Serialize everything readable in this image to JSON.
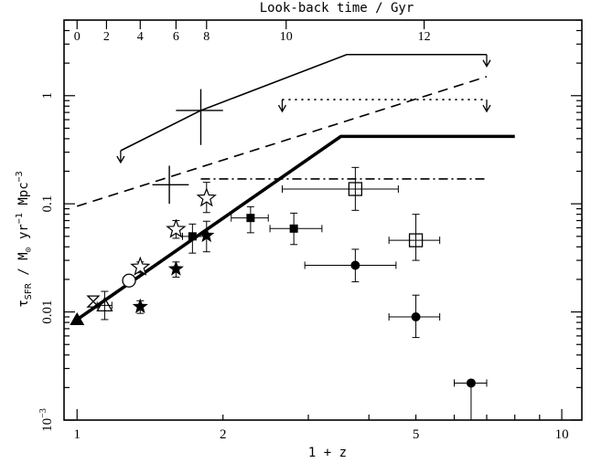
{
  "chart_data": {
    "type": "scatter",
    "title": "",
    "xlabel": "1 + z",
    "top_axis_label": "Look-back time / Gyr",
    "ylabel_text": {
      "tau": "τ",
      "sfr": "SFR",
      "units": " / M",
      "sun": "⊙",
      "yr": " yr",
      "yr_exp": "−1",
      "mpc": " Mpc",
      "mpc_exp": "−3"
    },
    "x_scale": "log",
    "y_scale": "log",
    "xlim": [
      0.94,
      11.0
    ],
    "ylim": [
      0.001,
      5.0
    ],
    "x_ticks": [
      {
        "value": 1,
        "label": "1"
      },
      {
        "value": 2,
        "label": "2"
      },
      {
        "value": 5,
        "label": "5"
      },
      {
        "value": 10,
        "label": "10"
      }
    ],
    "y_ticks": [
      {
        "value": 0.001,
        "label": "10",
        "exp": "−3"
      },
      {
        "value": 0.01,
        "label": "0.01",
        "exp": ""
      },
      {
        "value": 0.1,
        "label": "0.1",
        "exp": ""
      },
      {
        "value": 1,
        "label": "1",
        "exp": ""
      }
    ],
    "top_ticks": [
      {
        "x": 1.0,
        "label": "0"
      },
      {
        "x": 1.15,
        "label": "2"
      },
      {
        "x": 1.35,
        "label": "4"
      },
      {
        "x": 1.6,
        "label": "6"
      },
      {
        "x": 1.85,
        "label": "8"
      },
      {
        "x": 2.7,
        "label": "10"
      },
      {
        "x": 5.2,
        "label": "12"
      }
    ],
    "lines": [
      {
        "name": "upper-limit-solid",
        "style": "thin-solid",
        "points": [
          [
            1.23,
            0.31
          ],
          [
            1.8,
            0.73
          ],
          [
            3.6,
            2.4
          ],
          [
            7.0,
            2.4
          ]
        ],
        "down_arrows_x": [
          1.23,
          7.0
        ]
      },
      {
        "name": "dashed",
        "style": "dashed",
        "points": [
          [
            1.0,
            0.095
          ],
          [
            7.0,
            1.5
          ]
        ]
      },
      {
        "name": "dotted",
        "style": "dotted",
        "points": [
          [
            2.65,
            0.92
          ],
          [
            7.0,
            0.92
          ]
        ],
        "down_arrows_x": [
          2.65,
          7.0
        ]
      },
      {
        "name": "thick-solid",
        "style": "thick-solid",
        "points": [
          [
            1.0,
            0.0085
          ],
          [
            3.5,
            0.42
          ],
          [
            8.0,
            0.42
          ]
        ]
      },
      {
        "name": "dash-dot",
        "style": "dash-dot",
        "points": [
          [
            1.8,
            0.17
          ],
          [
            7.0,
            0.17
          ]
        ]
      }
    ],
    "points": [
      {
        "marker": "filled-triangle",
        "x": 1.0,
        "y": 0.0085,
        "xerr": [
          0,
          0
        ],
        "yerr": [
          0,
          0
        ]
      },
      {
        "marker": "bowtie",
        "x": 1.08,
        "y": 0.0125,
        "xerr": [
          0,
          0
        ],
        "yerr": [
          0,
          0
        ]
      },
      {
        "marker": "open-triangle",
        "x": 1.14,
        "y": 0.0115,
        "xerr": [
          0.04,
          0.04
        ],
        "yerr": [
          0.003,
          0.004
        ]
      },
      {
        "marker": "open-circle",
        "x": 1.28,
        "y": 0.0195,
        "xerr": [
          0,
          0
        ],
        "yerr": [
          0.002,
          0.002
        ]
      },
      {
        "marker": "filled-star",
        "x": 1.35,
        "y": 0.0112,
        "xerr": [
          0,
          0
        ],
        "yerr": [
          0.0015,
          0.0015
        ]
      },
      {
        "marker": "open-star",
        "x": 1.35,
        "y": 0.026,
        "xerr": [
          0,
          0
        ],
        "yerr": [
          0.003,
          0.003
        ]
      },
      {
        "marker": "filled-star",
        "x": 1.6,
        "y": 0.025,
        "xerr": [
          0,
          0
        ],
        "yerr": [
          0.004,
          0.004
        ]
      },
      {
        "marker": "open-star",
        "x": 1.6,
        "y": 0.058,
        "xerr": [
          0,
          0
        ],
        "yerr": [
          0.01,
          0.012
        ]
      },
      {
        "marker": "filled-square",
        "x": 1.73,
        "y": 0.05,
        "xerr": [
          0.08,
          0.1
        ],
        "yerr": [
          0.015,
          0.015
        ]
      },
      {
        "marker": "filled-star",
        "x": 1.85,
        "y": 0.051,
        "xerr": [
          0,
          0
        ],
        "yerr": [
          0.015,
          0.018
        ]
      },
      {
        "marker": "open-star",
        "x": 1.85,
        "y": 0.113,
        "xerr": [
          0,
          0
        ],
        "yerr": [
          0.03,
          0.045
        ]
      },
      {
        "marker": "filled-square",
        "x": 2.28,
        "y": 0.074,
        "xerr": [
          0.2,
          0.2
        ],
        "yerr": [
          0.02,
          0.02
        ]
      },
      {
        "marker": "filled-square",
        "x": 2.8,
        "y": 0.059,
        "xerr": [
          0.3,
          0.4
        ],
        "yerr": [
          0.017,
          0.023
        ]
      },
      {
        "marker": "open-square",
        "x": 3.75,
        "y": 0.137,
        "xerr": [
          1.1,
          0.85
        ],
        "yerr": [
          0.05,
          0.08
        ]
      },
      {
        "marker": "filled-circle",
        "x": 3.75,
        "y": 0.027,
        "xerr": [
          0.8,
          0.8
        ],
        "yerr": [
          0.008,
          0.011
        ]
      },
      {
        "marker": "open-square",
        "x": 5.0,
        "y": 0.046,
        "xerr": [
          0.6,
          0.6
        ],
        "yerr": [
          0.016,
          0.034
        ]
      },
      {
        "marker": "filled-circle",
        "x": 5.0,
        "y": 0.009,
        "xerr": [
          0.6,
          0.6
        ],
        "yerr": [
          0.0032,
          0.0053
        ]
      },
      {
        "marker": "filled-circle",
        "x": 6.5,
        "y": 0.0022,
        "xerr": [
          0.5,
          0.5
        ],
        "yerr": [
          0.0012,
          0.0
        ]
      }
    ],
    "bare_crosses": [
      {
        "x": 1.8,
        "y": 0.73,
        "xerr": [
          0.2,
          0.2
        ],
        "yerr": [
          0.38,
          0.42
        ]
      },
      {
        "x": 1.55,
        "y": 0.15,
        "xerr": [
          0.12,
          0.15
        ],
        "yerr": [
          0.05,
          0.075
        ]
      }
    ],
    "grid": false,
    "legend": "none"
  }
}
